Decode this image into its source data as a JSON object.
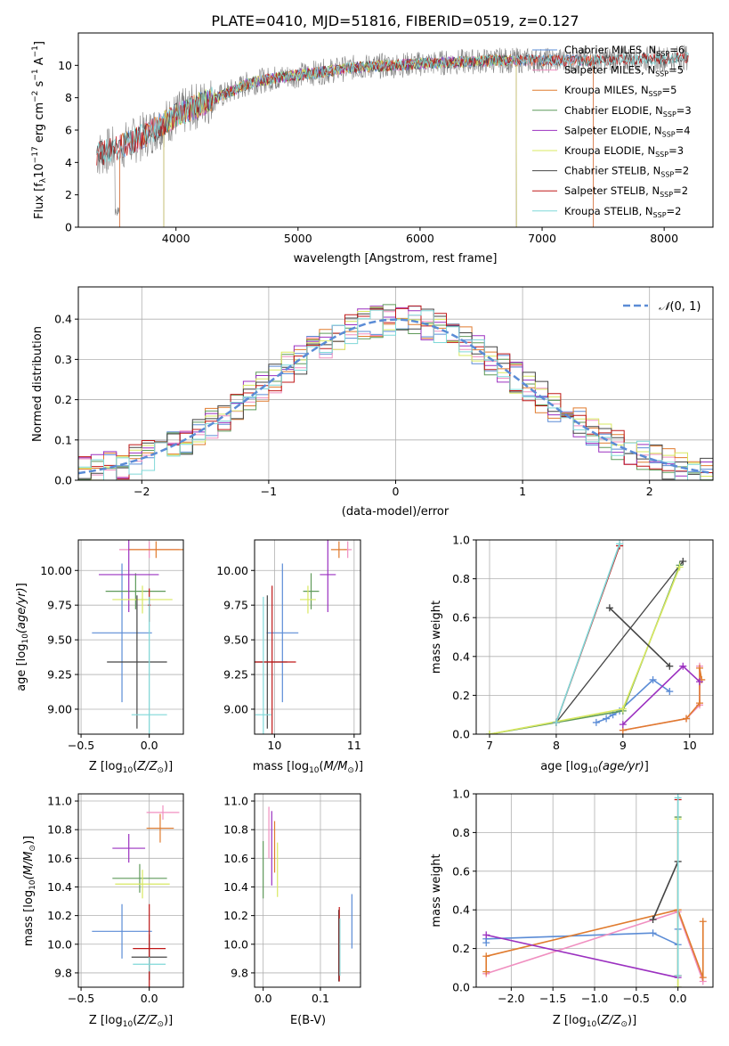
{
  "title": "PLATE=0410, MJD=51816, FIBERID=0519, z=0.127",
  "colors": {
    "Chabrier MILES": "#5b8cd6",
    "Salpeter MILES": "#f08fc0",
    "Kroupa MILES": "#e07b2e",
    "Chabrier ELODIE": "#5f9a5a",
    "Salpeter ELODIE": "#9b30c0",
    "Kroupa ELODIE": "#d8e860",
    "Chabrier STELIB": "#444444",
    "Salpeter STELIB": "#c01818",
    "Kroupa STELIB": "#7fd8d8",
    "data": "#808080",
    "grid": "#b0b0b0",
    "normal_curve": "#5b8cd6"
  },
  "chart_data": [
    {
      "id": "spectrum",
      "type": "line",
      "xlabel": "wavelength [Angstrom, rest frame]",
      "ylabel": "Flux [f_λ 10^-17 erg cm^-2 s^-1 A^-1]",
      "xlim": [
        3200,
        8400
      ],
      "ylim": [
        0,
        12
      ],
      "xticks": [
        4000,
        5000,
        6000,
        7000,
        8000
      ],
      "yticks": [
        0,
        2,
        4,
        6,
        8,
        10
      ],
      "grid": false,
      "legend_position": "top-right",
      "legend": [
        {
          "model": "Chabrier MILES",
          "label": "Chabrier MILES, N",
          "sub": "SSP",
          "count": "=6"
        },
        {
          "model": "Salpeter MILES",
          "label": "Salpeter MILES, N",
          "sub": "SSP",
          "count": "=5"
        },
        {
          "model": "Kroupa MILES",
          "label": "Kroupa MILES, N",
          "sub": "SSP",
          "count": "=5"
        },
        {
          "model": "Chabrier ELODIE",
          "label": "Chabrier ELODIE, N",
          "sub": "SSP",
          "count": "=3"
        },
        {
          "model": "Salpeter ELODIE",
          "label": "Salpeter ELODIE, N",
          "sub": "SSP",
          "count": "=4"
        },
        {
          "model": "Kroupa ELODIE",
          "label": "Kroupa ELODIE, N",
          "sub": "SSP",
          "count": "=3"
        },
        {
          "model": "Chabrier STELIB",
          "label": "Chabrier STELIB, N",
          "sub": "SSP",
          "count": "=2"
        },
        {
          "model": "Salpeter STELIB",
          "label": "Salpeter STELIB, N",
          "sub": "SSP",
          "count": "=2"
        },
        {
          "model": "Kroupa STELIB",
          "label": "Kroupa STELIB, N",
          "sub": "SSP",
          "count": "=2"
        }
      ],
      "continuum": [
        [
          3350,
          4.5
        ],
        [
          3500,
          4.8
        ],
        [
          3700,
          5.5
        ],
        [
          3900,
          6.4
        ],
        [
          4000,
          6.9
        ],
        [
          4200,
          7.6
        ],
        [
          4400,
          8.2
        ],
        [
          4600,
          8.9
        ],
        [
          4800,
          9.2
        ],
        [
          5000,
          9.4
        ],
        [
          5200,
          9.6
        ],
        [
          5500,
          9.9
        ],
        [
          5800,
          10.0
        ],
        [
          6000,
          10.1
        ],
        [
          6300,
          10.2
        ],
        [
          6600,
          10.3
        ],
        [
          7000,
          10.3
        ],
        [
          7400,
          10.3
        ],
        [
          7700,
          10.4
        ],
        [
          8000,
          10.4
        ],
        [
          8200,
          10.5
        ]
      ],
      "model_ranges": {
        "Chabrier MILES": [
          3540,
          7420
        ],
        "Salpeter MILES": [
          3540,
          7420
        ],
        "Kroupa MILES": [
          3540,
          7420
        ],
        "Chabrier ELODIE": [
          3900,
          6790
        ],
        "Salpeter ELODIE": [
          3900,
          6790
        ],
        "Kroupa ELODIE": [
          3900,
          6790
        ],
        "Chabrier STELIB": [
          3350,
          8200
        ],
        "Salpeter STELIB": [
          3350,
          8200
        ],
        "Kroupa STELIB": [
          3350,
          8200
        ]
      }
    },
    {
      "id": "residuals",
      "type": "histogram",
      "xlabel": "(data-model)/error",
      "ylabel": "Normed distribution",
      "xlim": [
        -2.5,
        2.5
      ],
      "ylim": [
        0,
        0.48
      ],
      "xticks": [
        -2,
        -1,
        0,
        1,
        2
      ],
      "yticks": [
        0.0,
        0.1,
        0.2,
        0.3,
        0.4
      ],
      "grid": true,
      "legend_position": "top-right",
      "legend_label": "N(0,1)",
      "bin_width": 0.1
    },
    {
      "id": "age_vs_Z",
      "type": "errorbar",
      "xlabel": "Z [log10(Z/Z⊙)]",
      "ylabel": "age [log10(age/yr)]",
      "xlim": [
        -0.52,
        0.25
      ],
      "ylim": [
        8.82,
        10.22
      ],
      "xticks": [
        -0.5,
        0.0
      ],
      "yticks": [
        9.0,
        9.25,
        9.5,
        9.75,
        10.0
      ],
      "grid": true,
      "points": [
        {
          "model": "Chabrier MILES",
          "x": -0.2,
          "y": 9.55,
          "xerr": 0.22,
          "yerr": 0.5
        },
        {
          "model": "Salpeter MILES",
          "x": 0.0,
          "y": 10.15,
          "xerr": 0.22,
          "yerr": 0.06
        },
        {
          "model": "Kroupa MILES",
          "x": 0.05,
          "y": 10.15,
          "xerr": 0.2,
          "yerr": 0.06
        },
        {
          "model": "Chabrier ELODIE",
          "x": -0.1,
          "y": 9.85,
          "xerr": 0.22,
          "yerr": 0.13
        },
        {
          "model": "Salpeter ELODIE",
          "x": -0.15,
          "y": 9.97,
          "xerr": 0.22,
          "yerr": 0.27
        },
        {
          "model": "Kroupa ELODIE",
          "x": -0.05,
          "y": 9.79,
          "xerr": 0.22,
          "yerr": 0.1
        },
        {
          "model": "Chabrier STELIB",
          "x": -0.09,
          "y": 9.34,
          "xerr": 0.22,
          "yerr": 0.48
        },
        {
          "model": "Salpeter STELIB",
          "x": 0.0,
          "y": 9.75,
          "xerr": 0.01,
          "yerr": 0.12
        },
        {
          "model": "Kroupa STELIB",
          "x": 0.0,
          "y": 8.96,
          "xerr": 0.13,
          "yerr": 0.85
        }
      ]
    },
    {
      "id": "age_vs_mass",
      "type": "errorbar",
      "xlabel": "mass [log10(M/M⊙)]",
      "ylabel": "",
      "xlim": [
        9.75,
        11.08
      ],
      "ylim": [
        8.82,
        10.22
      ],
      "xticks": [
        10,
        11
      ],
      "yticks": [
        9.0,
        9.25,
        9.5,
        9.75,
        10.0
      ],
      "grid": true,
      "points": [
        {
          "model": "Chabrier MILES",
          "x": 10.1,
          "y": 9.55,
          "xerr": 0.2,
          "yerr": 0.5
        },
        {
          "model": "Salpeter MILES",
          "x": 10.92,
          "y": 10.15,
          "xerr": 0.05,
          "yerr": 0.06
        },
        {
          "model": "Kroupa MILES",
          "x": 10.81,
          "y": 10.15,
          "xerr": 0.1,
          "yerr": 0.06
        },
        {
          "model": "Chabrier ELODIE",
          "x": 10.46,
          "y": 9.85,
          "xerr": 0.1,
          "yerr": 0.13
        },
        {
          "model": "Salpeter ELODIE",
          "x": 10.67,
          "y": 9.97,
          "xerr": 0.1,
          "yerr": 0.27
        },
        {
          "model": "Kroupa ELODIE",
          "x": 10.42,
          "y": 9.79,
          "xerr": 0.1,
          "yerr": 0.1
        },
        {
          "model": "Chabrier STELIB",
          "x": 9.91,
          "y": 9.34,
          "xerr": 0.25,
          "yerr": 0.48
        },
        {
          "model": "Salpeter STELIB",
          "x": 9.97,
          "y": 9.34,
          "xerr": 0.3,
          "yerr": 0.55
        },
        {
          "model": "Kroupa STELIB",
          "x": 9.86,
          "y": 8.96,
          "xerr": 0.1,
          "yerr": 0.85
        }
      ]
    },
    {
      "id": "weight_vs_age",
      "type": "line",
      "xlabel": "age [log10(age/yr)]",
      "ylabel": "mass weight",
      "xlim": [
        6.8,
        10.35
      ],
      "ylim": [
        0,
        1
      ],
      "xticks": [
        7,
        8,
        9,
        10
      ],
      "yticks": [
        0.0,
        0.2,
        0.4,
        0.6,
        0.8,
        1.0
      ],
      "grid": true,
      "series": [
        {
          "model": "Chabrier MILES",
          "points": [
            [
              8.6,
              0.06
            ],
            [
              8.75,
              0.08
            ],
            [
              8.85,
              0.1
            ],
            [
              8.95,
              0.12
            ],
            [
              9.45,
              0.28
            ],
            [
              9.7,
              0.22
            ]
          ]
        },
        {
          "model": "Salpeter MILES",
          "points": [
            [
              9.0,
              0.02
            ],
            [
              9.95,
              0.08
            ],
            [
              10.15,
              0.15
            ],
            [
              10.15,
              0.35
            ]
          ]
        },
        {
          "model": "Kroupa MILES",
          "points": [
            [
              9.0,
              0.02
            ],
            [
              9.95,
              0.08
            ],
            [
              10.15,
              0.16
            ],
            [
              10.15,
              0.34
            ],
            [
              10.18,
              0.28
            ]
          ]
        },
        {
          "model": "Chabrier ELODIE",
          "points": [
            [
              7.0,
              0.0
            ],
            [
              9.0,
              0.12
            ],
            [
              9.85,
              0.87
            ]
          ]
        },
        {
          "model": "Salpeter ELODIE",
          "points": [
            [
              9.0,
              0.05
            ],
            [
              9.9,
              0.35
            ],
            [
              10.15,
              0.27
            ]
          ]
        },
        {
          "model": "Kroupa ELODIE",
          "points": [
            [
              7.0,
              0.0
            ],
            [
              9.0,
              0.13
            ],
            [
              9.85,
              0.86
            ]
          ]
        },
        {
          "model": "Chabrier STELIB",
          "points": [
            [
              8.8,
              0.65
            ],
            [
              9.7,
              0.35
            ]
          ]
        },
        {
          "model": "Salpeter STELIB",
          "points": [
            [
              8.0,
              0.06
            ],
            [
              8.95,
              0.97
            ]
          ]
        },
        {
          "model": "Kroupa STELIB",
          "points": [
            [
              8.0,
              0.06
            ],
            [
              8.95,
              0.98
            ]
          ]
        }
      ],
      "extra_lines": [
        {
          "model": "Chabrier STELIB",
          "points": [
            [
              8.0,
              0.06
            ],
            [
              9.9,
              0.89
            ]
          ]
        }
      ]
    },
    {
      "id": "mass_vs_Z",
      "type": "errorbar",
      "xlabel": "Z [log10(Z/Z⊙)]",
      "ylabel": "mass [log10(M/M⊙)]",
      "xlim": [
        -0.52,
        0.25
      ],
      "ylim": [
        9.7,
        11.05
      ],
      "xticks": [
        -0.5,
        0.0
      ],
      "yticks": [
        9.8,
        10.0,
        10.2,
        10.4,
        10.6,
        10.8,
        11.0
      ],
      "grid": true,
      "points": [
        {
          "model": "Chabrier MILES",
          "x": -0.2,
          "y": 10.09,
          "xerr": 0.22,
          "yerr": 0.19
        },
        {
          "model": "Salpeter MILES",
          "x": 0.1,
          "y": 10.92,
          "xerr": 0.12,
          "yerr": 0.05
        },
        {
          "model": "Kroupa MILES",
          "x": 0.08,
          "y": 10.81,
          "xerr": 0.1,
          "yerr": 0.1
        },
        {
          "model": "Chabrier ELODIE",
          "x": -0.07,
          "y": 10.46,
          "xerr": 0.2,
          "yerr": 0.1
        },
        {
          "model": "Salpeter ELODIE",
          "x": -0.15,
          "y": 10.67,
          "xerr": 0.12,
          "yerr": 0.1
        },
        {
          "model": "Kroupa ELODIE",
          "x": -0.05,
          "y": 10.42,
          "xerr": 0.2,
          "yerr": 0.1
        },
        {
          "model": "Chabrier STELIB",
          "x": 0.0,
          "y": 9.91,
          "xerr": 0.13,
          "yerr": 0.16
        },
        {
          "model": "Salpeter STELIB",
          "x": 0.0,
          "y": 9.97,
          "xerr": 0.12,
          "yerr": 0.31
        },
        {
          "model": "Kroupa STELIB",
          "x": 0.0,
          "y": 9.86,
          "xerr": 0.12,
          "yerr": 0.05
        }
      ]
    },
    {
      "id": "mass_vs_ebv",
      "type": "errorbar",
      "xlabel": "E(B-V)",
      "ylabel": "",
      "xlim": [
        -0.015,
        0.17
      ],
      "ylim": [
        9.7,
        11.05
      ],
      "xticks": [
        0.0,
        0.1
      ],
      "yticks": [
        9.8,
        10.0,
        10.2,
        10.4,
        10.6,
        10.8,
        11.0
      ],
      "grid": true,
      "points": [
        {
          "model": "Chabrier MILES",
          "x": 0.155,
          "y": 10.16,
          "xerr": 0.0,
          "yerr": 0.19
        },
        {
          "model": "Salpeter MILES",
          "x": 0.01,
          "y": 10.78,
          "xerr": 0.0,
          "yerr": 0.18
        },
        {
          "model": "Kroupa MILES",
          "x": 0.02,
          "y": 10.68,
          "xerr": 0.0,
          "yerr": 0.18
        },
        {
          "model": "Chabrier ELODIE",
          "x": 0.0,
          "y": 10.52,
          "xerr": 0.0,
          "yerr": 0.2
        },
        {
          "model": "Salpeter ELODIE",
          "x": 0.015,
          "y": 10.67,
          "xerr": 0.0,
          "yerr": 0.26
        },
        {
          "model": "Kroupa ELODIE",
          "x": 0.025,
          "y": 10.52,
          "xerr": 0.0,
          "yerr": 0.19
        },
        {
          "model": "Chabrier STELIB",
          "x": 0.132,
          "y": 9.99,
          "xerr": 0.0,
          "yerr": 0.25
        },
        {
          "model": "Salpeter STELIB",
          "x": 0.133,
          "y": 10.0,
          "xerr": 0.0,
          "yerr": 0.26
        },
        {
          "model": "Kroupa STELIB",
          "x": 0.134,
          "y": 9.98,
          "xerr": 0.0,
          "yerr": 0.2
        }
      ]
    },
    {
      "id": "weight_vs_Z",
      "type": "line",
      "xlabel": "Z [log10(Z/Z⊙)]",
      "ylabel": "mass weight",
      "xlim": [
        -2.42,
        0.42
      ],
      "ylim": [
        0,
        1
      ],
      "xticks": [
        -2.0,
        -1.5,
        -1.0,
        -0.5,
        0.0
      ],
      "yticks": [
        0.0,
        0.2,
        0.4,
        0.6,
        0.8,
        1.0
      ],
      "grid": true,
      "series": [
        {
          "model": "Chabrier MILES",
          "points": [
            [
              -2.3,
              0.23
            ],
            [
              -2.3,
              0.25
            ],
            [
              -0.3,
              0.28
            ],
            [
              0.0,
              0.22
            ],
            [
              0.0,
              0.3
            ]
          ]
        },
        {
          "model": "Salpeter MILES",
          "points": [
            [
              -2.3,
              0.07
            ],
            [
              0.0,
              0.39
            ],
            [
              0.3,
              0.03
            ]
          ]
        },
        {
          "model": "Kroupa MILES",
          "points": [
            [
              -2.3,
              0.08
            ],
            [
              -2.3,
              0.16
            ],
            [
              0.0,
              0.4
            ],
            [
              0.3,
              0.05
            ],
            [
              0.3,
              0.34
            ]
          ]
        },
        {
          "model": "Chabrier ELODIE",
          "points": [
            [
              0.0,
              0.0
            ],
            [
              0.0,
              0.88
            ]
          ]
        },
        {
          "model": "Salpeter ELODIE",
          "points": [
            [
              -2.3,
              0.27
            ],
            [
              0.0,
              0.05
            ]
          ]
        },
        {
          "model": "Kroupa ELODIE",
          "points": [
            [
              0.0,
              0.0
            ],
            [
              0.0,
              0.87
            ]
          ]
        },
        {
          "model": "Chabrier STELIB",
          "points": [
            [
              -0.3,
              0.35
            ],
            [
              0.0,
              0.65
            ]
          ]
        },
        {
          "model": "Salpeter STELIB",
          "points": [
            [
              0.0,
              0.06
            ],
            [
              0.0,
              0.97
            ]
          ]
        },
        {
          "model": "Kroupa STELIB",
          "points": [
            [
              0.0,
              0.06
            ],
            [
              0.0,
              0.98
            ]
          ]
        }
      ]
    }
  ]
}
